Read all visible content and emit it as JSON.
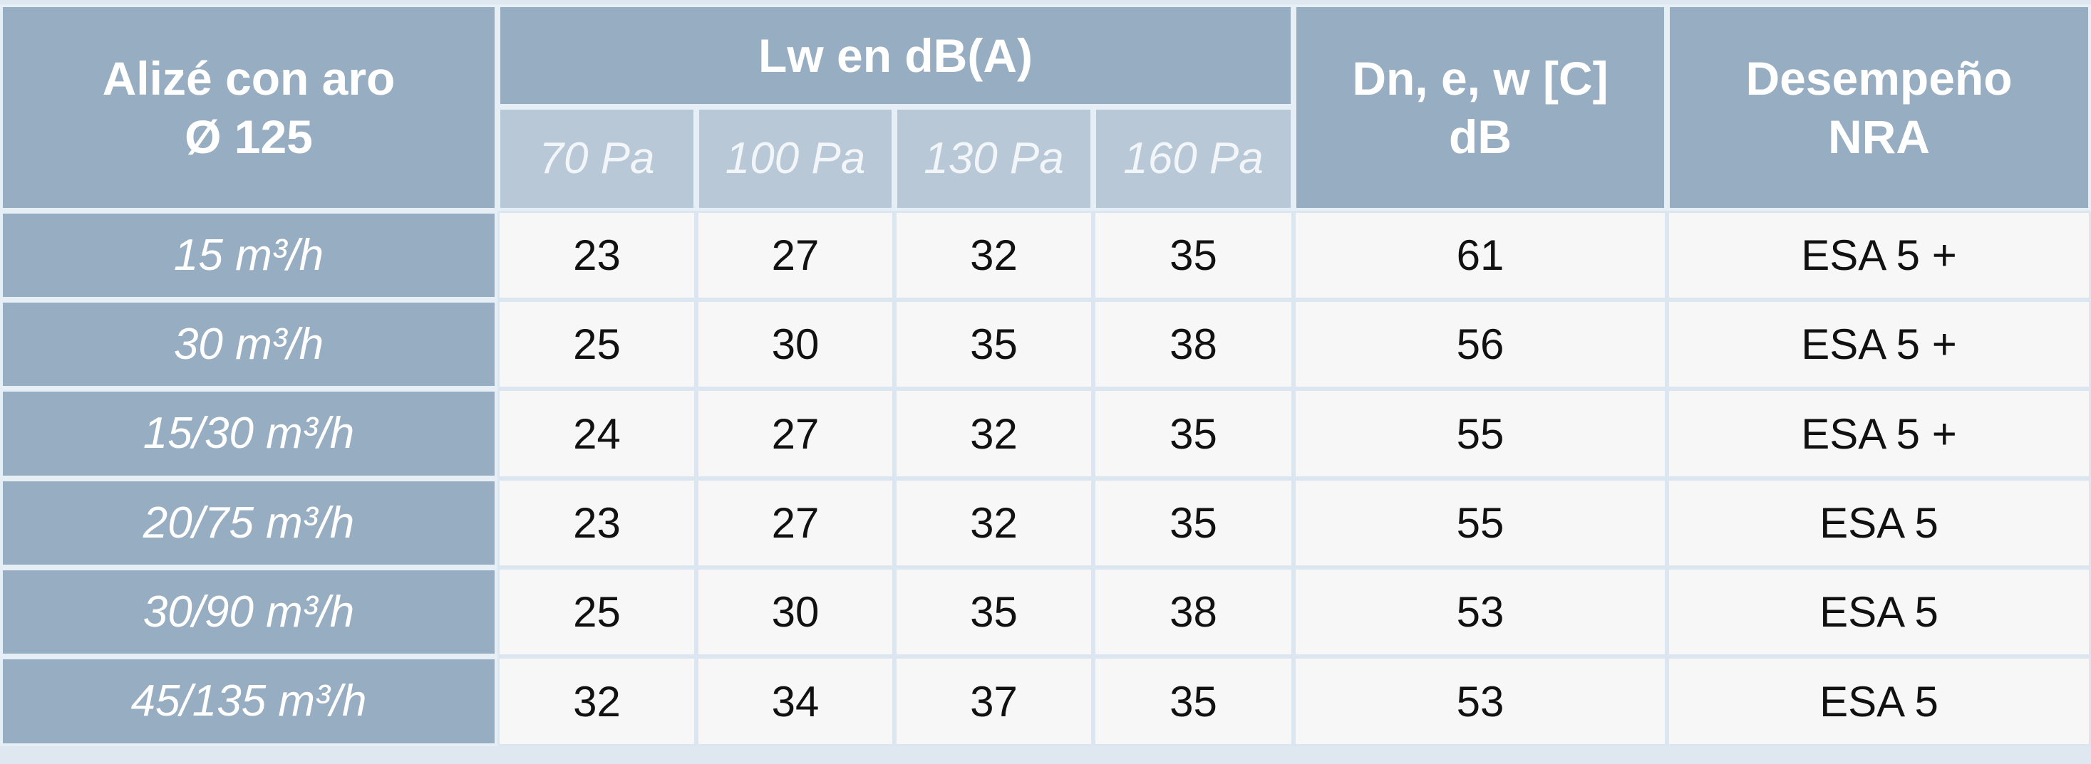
{
  "header": {
    "row_label": [
      "Alizé con aro",
      "Ø 125"
    ],
    "group": "Lw en dB(A)",
    "pressures": [
      "70 Pa",
      "100 Pa",
      "130 Pa",
      "160 Pa"
    ],
    "attenuation": [
      "Dn, e, w [C]",
      "dB"
    ],
    "performance": [
      "Desempeño",
      "NRA"
    ]
  },
  "rows": [
    {
      "flow": "15 m³/h",
      "lw": [
        23,
        27,
        32,
        35
      ],
      "dn": 61,
      "nra": "ESA 5 +"
    },
    {
      "flow": "30 m³/h",
      "lw": [
        25,
        30,
        35,
        38
      ],
      "dn": 56,
      "nra": "ESA 5 +"
    },
    {
      "flow": "15/30 m³/h",
      "lw": [
        24,
        27,
        32,
        35
      ],
      "dn": 55,
      "nra": "ESA 5 +"
    },
    {
      "flow": "20/75 m³/h",
      "lw": [
        23,
        27,
        32,
        35
      ],
      "dn": 55,
      "nra": "ESA 5"
    },
    {
      "flow": "30/90 m³/h",
      "lw": [
        25,
        30,
        35,
        38
      ],
      "dn": 53,
      "nra": "ESA 5"
    },
    {
      "flow": "45/135 m³/h",
      "lw": [
        32,
        34,
        37,
        35
      ],
      "dn": 53,
      "nra": "ESA 5"
    }
  ]
}
